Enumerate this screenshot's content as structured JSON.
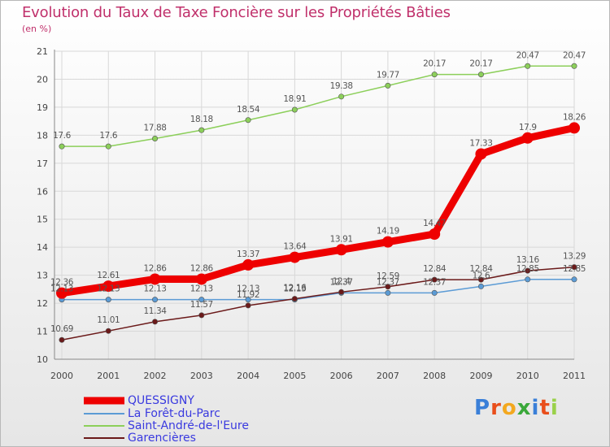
{
  "chart_data": {
    "type": "line",
    "title": "Evolution du Taux de Taxe Foncière sur les Propriétés Bâties",
    "unit": "(en %)",
    "xlabel": "",
    "ylabel": "(en %)",
    "categories": [
      "2000",
      "2001",
      "2002",
      "2003",
      "2004",
      "2005",
      "2006",
      "2007",
      "2008",
      "2009",
      "2010",
      "2011"
    ],
    "ylim": [
      10,
      21
    ],
    "yticks": [
      "10",
      "11",
      "12",
      "13",
      "14",
      "15",
      "16",
      "17",
      "18",
      "19",
      "20",
      "21"
    ],
    "series": [
      {
        "name": "QUESSIGNY",
        "color": "#ee0000",
        "values": [
          12.36,
          12.61,
          12.86,
          12.86,
          13.37,
          13.64,
          13.91,
          14.19,
          14.47,
          17.33,
          17.9,
          18.26
        ],
        "labels": [
          "12.36",
          "12.61",
          "12.86",
          "12.86",
          "13.37",
          "13.64",
          "13.91",
          "14.19",
          "14.47",
          "17.33",
          "17.9",
          "18.26"
        ]
      },
      {
        "name": "La Forêt-du-Parc",
        "color": "#5b9bd5",
        "values": [
          12.13,
          12.13,
          12.13,
          12.13,
          12.13,
          12.13,
          12.37,
          12.37,
          12.37,
          12.6,
          12.85,
          12.85
        ],
        "labels": [
          "12.13",
          "12.13",
          "12.13",
          "12.13",
          "12.13",
          "12.13",
          "12.37",
          "12.37",
          "12.37",
          "12.6",
          "12.85",
          "12.85"
        ]
      },
      {
        "name": "Saint-André-de-l'Eure",
        "color": "#8ccf5a",
        "values": [
          17.6,
          17.6,
          17.88,
          18.18,
          18.54,
          18.91,
          19.38,
          19.77,
          20.17,
          20.17,
          20.47,
          20.47
        ],
        "labels": [
          "17.6",
          "17.6",
          "17.88",
          "18.18",
          "18.54",
          "18.91",
          "19.38",
          "19.77",
          "20.17",
          "20.17",
          "20.47",
          "20.47"
        ]
      },
      {
        "name": "Garencières",
        "color": "#6b1a1a",
        "values": [
          10.69,
          11.01,
          11.34,
          11.57,
          11.92,
          12.16,
          12.4,
          12.59,
          12.84,
          12.84,
          13.16,
          13.29
        ],
        "labels": [
          "10.69",
          "11.01",
          "11.34",
          "11.57",
          "11.92",
          "12.16",
          "12.4",
          "12.59",
          "12.84",
          "12.84",
          "13.16",
          "13.29"
        ]
      }
    ]
  },
  "brand": {
    "logo_letters": [
      "P",
      "r",
      "o",
      "x",
      "i",
      "t",
      "i"
    ]
  },
  "colors": {
    "title": "#c0306b",
    "grid": "#d8d8d8",
    "axis": "#888888",
    "legend_text": "#3a3adf"
  }
}
